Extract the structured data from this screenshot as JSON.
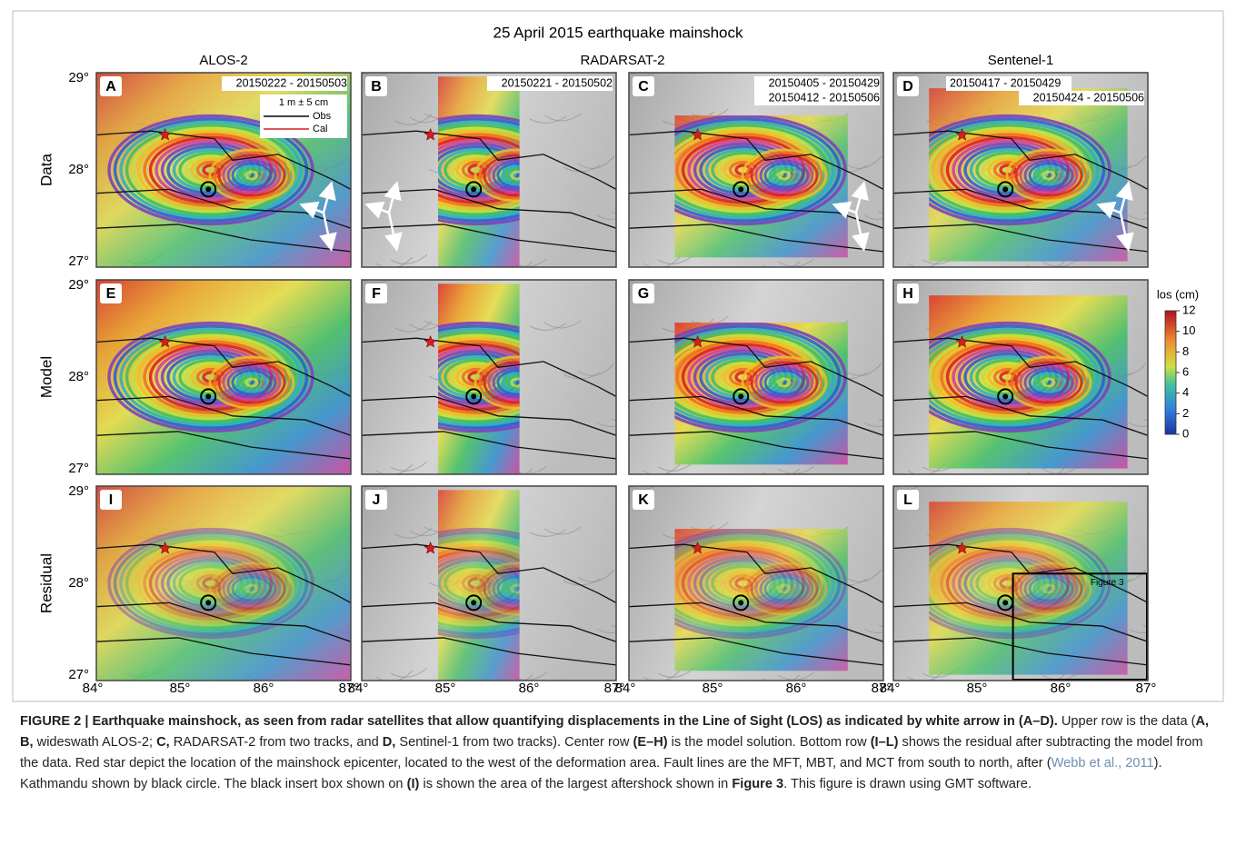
{
  "title": "25 April 2015 earthquake mainshock",
  "column_headers": [
    "ALOS-2",
    "RADARSAT-2",
    "Sentenel-1"
  ],
  "row_labels": [
    "Data",
    "Model",
    "Residual"
  ],
  "y_axis_labels": [
    "29°",
    "28°",
    "27°"
  ],
  "x_axis_labels": [
    "84°",
    "85°",
    "86°",
    "87°"
  ],
  "panels": [
    {
      "letter": "A",
      "dates": [
        "20150222 - 20150503"
      ]
    },
    {
      "letter": "B",
      "dates": [
        "20150221 - 20150502"
      ]
    },
    {
      "letter": "C",
      "dates": [
        "20150405 - 20150429",
        "20150412 - 20150506"
      ]
    },
    {
      "letter": "D",
      "dates": [
        "20150417 - 20150429",
        "20150424 - 20150506"
      ]
    },
    {
      "letter": "E",
      "dates": []
    },
    {
      "letter": "F",
      "dates": []
    },
    {
      "letter": "G",
      "dates": []
    },
    {
      "letter": "H",
      "dates": []
    },
    {
      "letter": "I",
      "dates": []
    },
    {
      "letter": "J",
      "dates": []
    },
    {
      "letter": "K",
      "dates": []
    },
    {
      "letter": "L",
      "dates": []
    }
  ],
  "arrow_legend": {
    "scale": "1 m ± 5 cm",
    "obs": "Obs",
    "cal": "Cal"
  },
  "inset_label": "Figure 3",
  "colorbar": {
    "title": "los (cm)",
    "lim": [
      0,
      12
    ],
    "ticks": [
      0,
      2,
      4,
      6,
      8,
      10,
      12
    ]
  },
  "caption": [
    {
      "text": "FIGURE 2 | Earthquake mainshock, as seen from radar satellites that allow quantifying displacements in the Line of Sight (LOS) as indicated by white arrow in (A–D).",
      "style": "bold"
    },
    {
      "text": " Upper row is the data (",
      "style": "normal"
    },
    {
      "text": "A, B,",
      "style": "bold"
    },
    {
      "text": " wideswath ALOS-2; ",
      "style": "normal"
    },
    {
      "text": "C,",
      "style": "bold"
    },
    {
      "text": " RADARSAT-2 from two tracks, and ",
      "style": "normal"
    },
    {
      "text": "D,",
      "style": "bold"
    },
    {
      "text": " Sentinel-1 from two tracks). Center row ",
      "style": "normal"
    },
    {
      "text": "(E–H)",
      "style": "bold"
    },
    {
      "text": " is the model solution. Bottom row ",
      "style": "normal"
    },
    {
      "text": "(I–L)",
      "style": "bold"
    },
    {
      "text": " shows the residual after subtracting the model from the data. Red star depict the location of the mainshock epicenter, located to the west of the deformation area. Fault lines are the MFT, MBT, and MCT from south to north, after (",
      "style": "normal"
    },
    {
      "text": "Webb et al., 2011",
      "style": "link"
    },
    {
      "text": "). Kathmandu shown by black circle. The black insert box shown on ",
      "style": "normal"
    },
    {
      "text": "(I)",
      "style": "bold"
    },
    {
      "text": " is shown the area of the largest aftershock shown in ",
      "style": "normal"
    },
    {
      "text": "Figure 3",
      "style": "bold"
    },
    {
      "text": ". This figure is drawn using GMT software.",
      "style": "normal"
    }
  ]
}
